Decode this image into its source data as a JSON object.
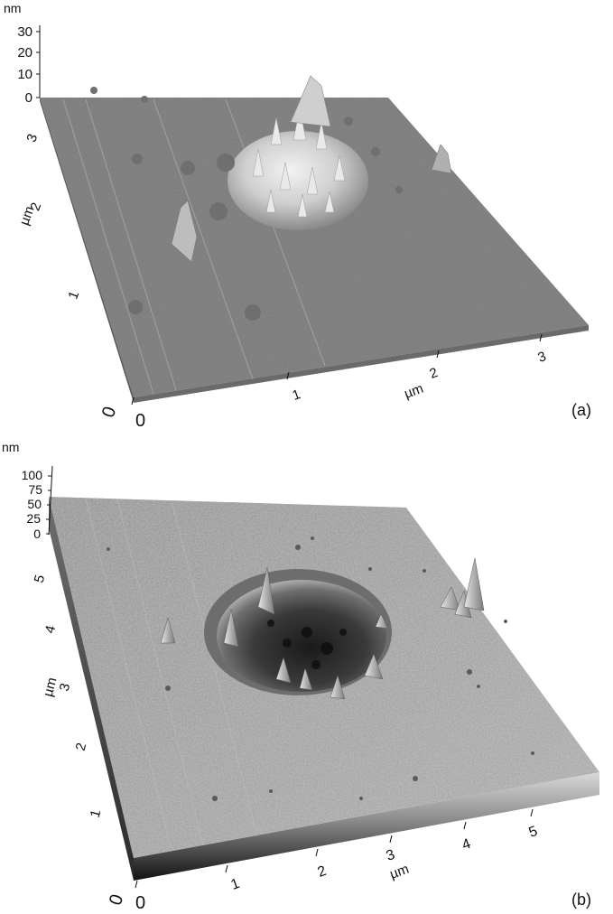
{
  "panel_a": {
    "z_unit": "nm",
    "z_ticks": [
      "30",
      "20",
      "10",
      "0"
    ],
    "y_ticks": [
      "3",
      "2",
      "1"
    ],
    "y_unit": "µm",
    "x_ticks": [
      "0",
      "1",
      "2",
      "3"
    ],
    "x_unit": "µm",
    "origin_label": "0",
    "panel_label": "(a)"
  },
  "panel_b": {
    "z_unit": "nm",
    "z_ticks": [
      "100",
      "75",
      "50",
      "25",
      "0"
    ],
    "y_ticks": [
      "5",
      "4",
      "3",
      "2",
      "1"
    ],
    "y_unit": "µm",
    "x_ticks": [
      "0",
      "1",
      "2",
      "3",
      "4",
      "5"
    ],
    "x_unit": "µm",
    "origin_label": "0",
    "panel_label": "(b)"
  }
}
